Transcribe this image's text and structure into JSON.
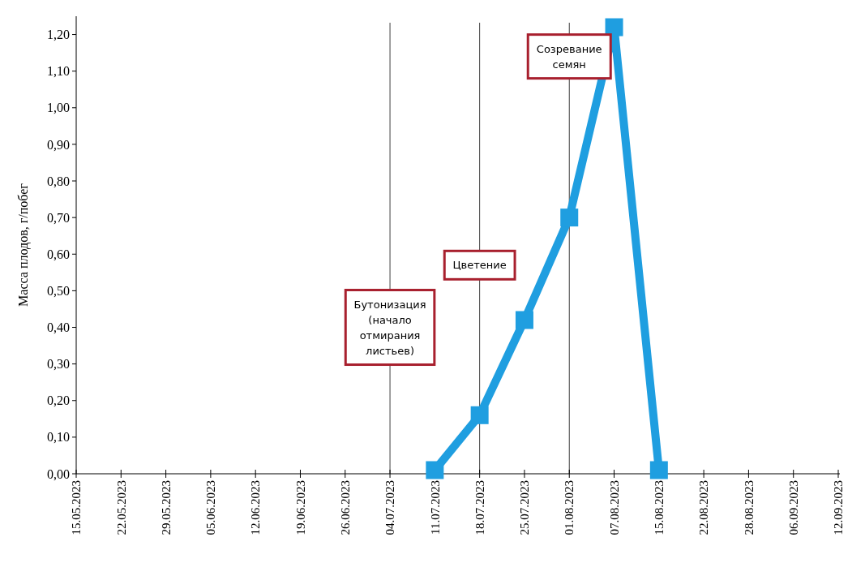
{
  "chart_data": {
    "type": "line",
    "ylabel": "Масса плодов, г/побег",
    "categories": [
      "15.05.2023",
      "22.05.2023",
      "29.05.2023",
      "05.06.2023",
      "12.06.2023",
      "19.06.2023",
      "26.06.2023",
      "04.07.2023",
      "11.07.2023",
      "18.07.2023",
      "25.07.2023",
      "01.08.2023",
      "07.08.2023",
      "15.08.2023",
      "22.08.2023",
      "28.08.2023",
      "06.09.2023",
      "12.09.2023"
    ],
    "series": [
      {
        "color": "#1f9ee0",
        "values": [
          null,
          null,
          null,
          null,
          null,
          null,
          null,
          null,
          0.01,
          0.16,
          0.42,
          0.7,
          1.22,
          0.01,
          null,
          null,
          null,
          null
        ]
      }
    ],
    "ylim": [
      0,
      1.25
    ],
    "yticks": [
      {
        "value": 0,
        "label": "0,00"
      },
      {
        "value": 0.1,
        "label": "0,10"
      },
      {
        "value": 0.2,
        "label": "0,20"
      },
      {
        "value": 0.3,
        "label": "0,30"
      },
      {
        "value": 0.4,
        "label": "0,40"
      },
      {
        "value": 0.5,
        "label": "0,50"
      },
      {
        "value": 0.6,
        "label": "0,60"
      },
      {
        "value": 0.7,
        "label": "0,70"
      },
      {
        "value": 0.8,
        "label": "0,80"
      },
      {
        "value": 0.9,
        "label": "0,90"
      },
      {
        "value": 1.0,
        "label": "1,00"
      },
      {
        "value": 1.1,
        "label": "1,10"
      },
      {
        "value": 1.2,
        "label": "1,20"
      }
    ],
    "ref_lines": [
      {
        "axis": "x",
        "value": "04.07.2023",
        "color": "#404040"
      },
      {
        "axis": "x",
        "value": "18.07.2023",
        "color": "#404040"
      },
      {
        "axis": "x",
        "value": "01.08.2023",
        "color": "#404040"
      }
    ],
    "annotations": [
      {
        "text": "Бутонизация\n(начало\nотмирания\nлистьев)",
        "x": "04.07.2023",
        "y": 0.4
      },
      {
        "text": "Цветение",
        "x": "18.07.2023",
        "y": 0.57
      },
      {
        "text": "Созревание\nсемян",
        "x": "01.08.2023",
        "y": 1.14
      }
    ],
    "marker": "square",
    "line_style": "solid"
  }
}
